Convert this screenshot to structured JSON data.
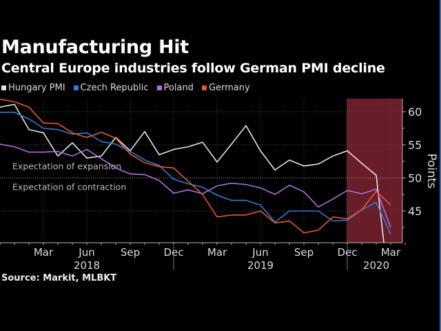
{
  "title": "Manufacturing Hit",
  "subtitle": "Central Europe industries follow German PMI decline",
  "source": "Source: Markit, MLBKT",
  "chart_data": {
    "type": "line",
    "title": "Manufacturing Hit",
    "subtitle": "Central Europe industries follow German PMI decline",
    "xlabel": "",
    "ylabel": "Points",
    "ylim": [
      40.6,
      62
    ],
    "yticks": [
      45,
      50,
      55,
      60
    ],
    "grid": true,
    "legend_position": "top-left",
    "x": [
      "Dec 2017",
      "Jan 2018",
      "Feb 2018",
      "Mar 2018",
      "Apr 2018",
      "May 2018",
      "Jun 2018",
      "Jul 2018",
      "Aug 2018",
      "Sep 2018",
      "Oct 2018",
      "Nov 2018",
      "Dec 2018",
      "Jan 2019",
      "Feb 2019",
      "Mar 2019",
      "Apr 2019",
      "May 2019",
      "Jun 2019",
      "Jul 2019",
      "Aug 2019",
      "Sep 2019",
      "Oct 2019",
      "Nov 2019",
      "Dec 2019",
      "Jan 2020",
      "Feb 2020",
      "Mar 2020"
    ],
    "xticks": [
      {
        "label": "Mar",
        "index": 3
      },
      {
        "label": "Jun",
        "index": 6
      },
      {
        "label": "Sep",
        "index": 9
      },
      {
        "label": "Dec",
        "index": 12
      },
      {
        "label": "Mar",
        "index": 15
      },
      {
        "label": "Jun",
        "index": 18
      },
      {
        "label": "Sep",
        "index": 21
      },
      {
        "label": "Dec",
        "index": 24
      },
      {
        "label": "Mar",
        "index": 27
      }
    ],
    "year_labels": [
      {
        "label": "2018",
        "index": 6
      },
      {
        "label": "2019",
        "index": 18
      },
      {
        "label": "2020",
        "index": 26
      }
    ],
    "year_dividers": [
      12,
      24
    ],
    "series": [
      {
        "name": "Hungary PMI",
        "color": "#e6e6e6",
        "values": [
          60.7,
          61.1,
          57.3,
          56.8,
          53.3,
          55.3,
          53.0,
          53.3,
          56.1,
          54.1,
          57.0,
          53.5,
          54.3,
          54.7,
          55.4,
          52.4,
          55.1,
          57.9,
          54.1,
          51.2,
          52.7,
          51.8,
          52.1,
          53.3,
          54.1,
          52.2,
          50.4,
          31.0
        ]
      },
      {
        "name": "Czech Republic",
        "color": "#2f7ed8",
        "values": [
          59.9,
          59.9,
          58.9,
          57.5,
          57.3,
          56.6,
          56.8,
          55.5,
          55.1,
          54.0,
          52.7,
          51.9,
          49.8,
          49.1,
          48.6,
          47.4,
          46.6,
          46.6,
          45.9,
          43.3,
          45.0,
          45.0,
          45.0,
          43.5,
          43.6,
          45.2,
          46.3,
          41.5
        ]
      },
      {
        "name": "Poland",
        "color": "#b06fe0",
        "values": [
          55.1,
          54.7,
          53.9,
          53.9,
          54.0,
          53.3,
          54.3,
          52.9,
          51.5,
          50.6,
          50.5,
          49.6,
          47.7,
          48.2,
          47.6,
          48.8,
          49.2,
          49.0,
          48.5,
          47.5,
          48.9,
          47.9,
          45.6,
          46.8,
          48.1,
          47.6,
          48.3,
          42.5
        ]
      },
      {
        "name": "Germany",
        "color": "#e8582a",
        "values": [
          61.9,
          61.5,
          60.7,
          58.3,
          58.2,
          56.8,
          56.1,
          56.9,
          56.0,
          53.6,
          52.3,
          51.7,
          51.5,
          49.5,
          47.5,
          44.1,
          44.4,
          44.4,
          45.0,
          43.2,
          43.5,
          41.7,
          42.1,
          44.1,
          43.8,
          45.2,
          48.0,
          45.9
        ]
      }
    ],
    "annotations": [
      {
        "text": "Expectation of expansion",
        "y": 51.7
      },
      {
        "text": "Expectation of contraction",
        "y": 48.6
      }
    ],
    "reference_line": 50,
    "highlight_region": {
      "from_index": 24,
      "to_index": 28,
      "color": "#7a2230"
    }
  }
}
